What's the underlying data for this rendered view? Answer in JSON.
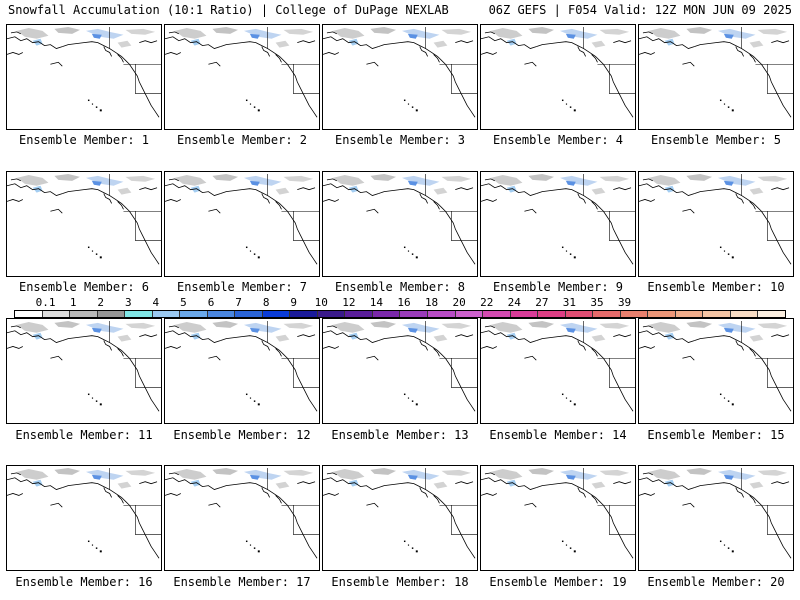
{
  "header": {
    "title_left": "Snowfall Accumulation (10:1 Ratio) | College of DuPage NEXLAB",
    "title_right": "06Z GEFS | F054 Valid: 12Z MON JUN 09 2025"
  },
  "legend": {
    "ticks": [
      "0.1",
      "1",
      "2",
      "3",
      "4",
      "5",
      "6",
      "7",
      "8",
      "9",
      "10",
      "12",
      "14",
      "16",
      "18",
      "20",
      "22",
      "24",
      "27",
      "31",
      "35",
      "39"
    ],
    "colors": [
      "#ffffff",
      "#dcdcdc",
      "#b8b8b8",
      "#969696",
      "#80e6e6",
      "#9ac8f0",
      "#6aa8ea",
      "#4a86e0",
      "#2a64d8",
      "#0a3cd8",
      "#1a1a9a",
      "#3a1a8a",
      "#5a1e9a",
      "#7a28aa",
      "#9a3cba",
      "#b84cc6",
      "#cc60cc",
      "#d24ab0",
      "#d83c98",
      "#dc3e84",
      "#e04e74",
      "#e46a6a",
      "#e8806e",
      "#ec9678",
      "#f0ac8a",
      "#f4c4a4",
      "#f8dcc4",
      "#fbeee0"
    ]
  },
  "panels": [
    {
      "caption": "Ensemble Member: 1"
    },
    {
      "caption": "Ensemble Member: 2"
    },
    {
      "caption": "Ensemble Member: 3"
    },
    {
      "caption": "Ensemble Member: 4"
    },
    {
      "caption": "Ensemble Member: 5"
    },
    {
      "caption": "Ensemble Member: 6"
    },
    {
      "caption": "Ensemble Member: 7"
    },
    {
      "caption": "Ensemble Member: 8"
    },
    {
      "caption": "Ensemble Member: 9"
    },
    {
      "caption": "Ensemble Member: 10"
    },
    {
      "caption": "Ensemble Member: 11"
    },
    {
      "caption": "Ensemble Member: 12"
    },
    {
      "caption": "Ensemble Member: 13"
    },
    {
      "caption": "Ensemble Member: 14"
    },
    {
      "caption": "Ensemble Member: 15"
    },
    {
      "caption": "Ensemble Member: 16"
    },
    {
      "caption": "Ensemble Member: 17"
    },
    {
      "caption": "Ensemble Member: 18"
    },
    {
      "caption": "Ensemble Member: 19"
    },
    {
      "caption": "Ensemble Member: 20"
    }
  ]
}
